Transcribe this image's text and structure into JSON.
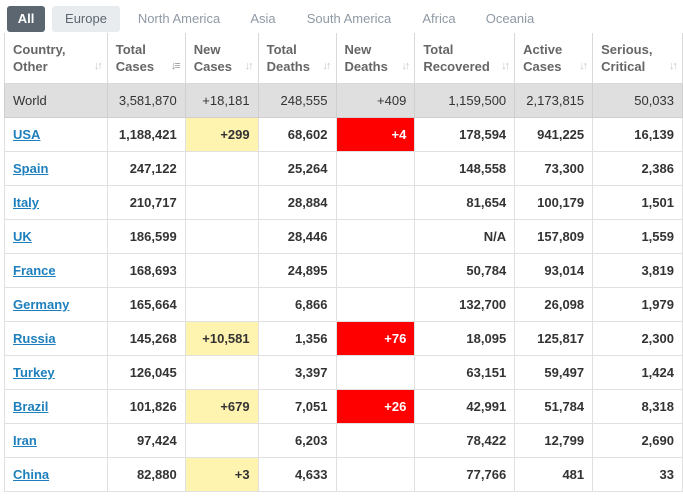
{
  "tabs": [
    "All",
    "Europe",
    "North America",
    "Asia",
    "South America",
    "Africa",
    "Oceania"
  ],
  "active_tab": "All",
  "headers": [
    {
      "line1": "Country,",
      "line2": "Other"
    },
    {
      "line1": "Total",
      "line2": "Cases"
    },
    {
      "line1": "New",
      "line2": "Cases"
    },
    {
      "line1": "Total",
      "line2": "Deaths"
    },
    {
      "line1": "New",
      "line2": "Deaths"
    },
    {
      "line1": "Total",
      "line2": "Recovered"
    },
    {
      "line1": "Active",
      "line2": "Cases"
    },
    {
      "line1": "Serious,",
      "line2": "Critical"
    }
  ],
  "colors": {
    "tab_active": "#5b6670",
    "link": "#1e7fbd",
    "new_cases_bg": "#fff3b0",
    "new_deaths_bg": "#ff0000",
    "world_bg": "#dfdfdf"
  },
  "world": {
    "country": "World",
    "total_cases": "3,581,870",
    "new_cases": "+18,181",
    "total_deaths": "248,555",
    "new_deaths": "+409",
    "total_recovered": "1,159,500",
    "active_cases": "2,173,815",
    "serious": "50,033"
  },
  "rows": [
    {
      "country": "USA",
      "total_cases": "1,188,421",
      "new_cases": "+299",
      "total_deaths": "68,602",
      "new_deaths": "+4",
      "total_recovered": "178,594",
      "active_cases": "941,225",
      "serious": "16,139"
    },
    {
      "country": "Spain",
      "total_cases": "247,122",
      "new_cases": "",
      "total_deaths": "25,264",
      "new_deaths": "",
      "total_recovered": "148,558",
      "active_cases": "73,300",
      "serious": "2,386"
    },
    {
      "country": "Italy",
      "total_cases": "210,717",
      "new_cases": "",
      "total_deaths": "28,884",
      "new_deaths": "",
      "total_recovered": "81,654",
      "active_cases": "100,179",
      "serious": "1,501"
    },
    {
      "country": "UK",
      "total_cases": "186,599",
      "new_cases": "",
      "total_deaths": "28,446",
      "new_deaths": "",
      "total_recovered": "N/A",
      "active_cases": "157,809",
      "serious": "1,559"
    },
    {
      "country": "France",
      "total_cases": "168,693",
      "new_cases": "",
      "total_deaths": "24,895",
      "new_deaths": "",
      "total_recovered": "50,784",
      "active_cases": "93,014",
      "serious": "3,819"
    },
    {
      "country": "Germany",
      "total_cases": "165,664",
      "new_cases": "",
      "total_deaths": "6,866",
      "new_deaths": "",
      "total_recovered": "132,700",
      "active_cases": "26,098",
      "serious": "1,979"
    },
    {
      "country": "Russia",
      "total_cases": "145,268",
      "new_cases": "+10,581",
      "total_deaths": "1,356",
      "new_deaths": "+76",
      "total_recovered": "18,095",
      "active_cases": "125,817",
      "serious": "2,300"
    },
    {
      "country": "Turkey",
      "total_cases": "126,045",
      "new_cases": "",
      "total_deaths": "3,397",
      "new_deaths": "",
      "total_recovered": "63,151",
      "active_cases": "59,497",
      "serious": "1,424"
    },
    {
      "country": "Brazil",
      "total_cases": "101,826",
      "new_cases": "+679",
      "total_deaths": "7,051",
      "new_deaths": "+26",
      "total_recovered": "42,991",
      "active_cases": "51,784",
      "serious": "8,318"
    },
    {
      "country": "Iran",
      "total_cases": "97,424",
      "new_cases": "",
      "total_deaths": "6,203",
      "new_deaths": "",
      "total_recovered": "78,422",
      "active_cases": "12,799",
      "serious": "2,690"
    },
    {
      "country": "China",
      "total_cases": "82,880",
      "new_cases": "+3",
      "total_deaths": "4,633",
      "new_deaths": "",
      "total_recovered": "77,766",
      "active_cases": "481",
      "serious": "33"
    }
  ]
}
